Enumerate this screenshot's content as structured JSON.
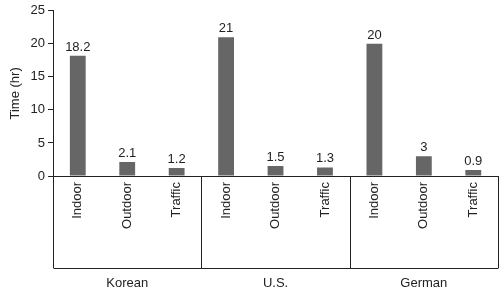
{
  "chart_data": {
    "type": "bar",
    "y_label": "Time (hr)",
    "groups": [
      "Korean",
      "U.S.",
      "German"
    ],
    "categories": [
      "Indoor",
      "Outdoor",
      "Traffic"
    ],
    "values": [
      [
        18.2,
        2.1,
        1.2
      ],
      [
        21,
        1.5,
        1.3
      ],
      [
        20,
        3,
        0.9
      ]
    ],
    "color": "#666666",
    "ylim": [
      0,
      25
    ],
    "yticks": [
      0,
      5,
      10,
      15,
      20,
      25
    ],
    "grid": false,
    "data_labels": true
  }
}
